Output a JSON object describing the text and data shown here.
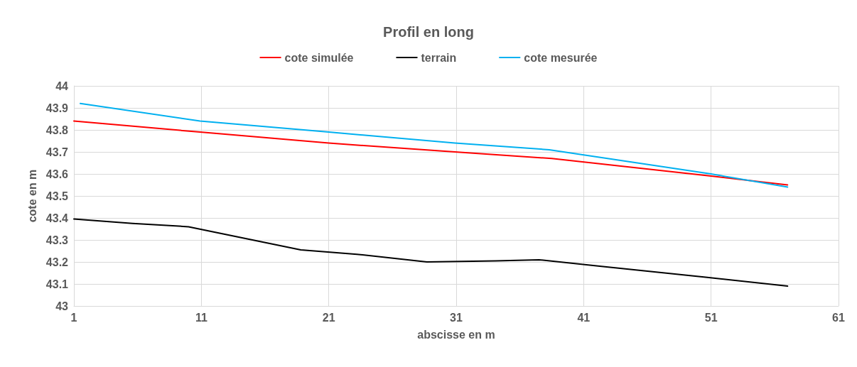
{
  "chart_data": {
    "type": "line",
    "title": "Profil en long",
    "xlabel": "abscisse en m",
    "ylabel": "cote en m",
    "xlim": [
      1,
      61
    ],
    "xticks": [
      1,
      11,
      21,
      31,
      41,
      51,
      61
    ],
    "ylim": [
      43,
      44
    ],
    "yticks": [
      43,
      43.1,
      43.2,
      43.3,
      43.4,
      43.5,
      43.6,
      43.7,
      43.8,
      43.9,
      44
    ],
    "grid": true,
    "legend": "top",
    "marker": "none",
    "series": [
      {
        "name": "cote simulée",
        "color": "#ff0000",
        "x": [
          1,
          10.9,
          21,
          30.9,
          38.5,
          51,
          57
        ],
        "values": [
          43.84,
          43.79,
          43.74,
          43.7,
          43.67,
          43.59,
          43.55
        ]
      },
      {
        "name": "terrain",
        "color": "#000000",
        "x": [
          1,
          5.6,
          10,
          18.8,
          23.2,
          28.7,
          34.1,
          37.5,
          42.4,
          50.7,
          57
        ],
        "values": [
          43.395,
          43.375,
          43.36,
          43.255,
          43.235,
          43.2,
          43.205,
          43.21,
          43.18,
          43.13,
          43.09
        ]
      },
      {
        "name": "cote mesurée",
        "color": "#00b0f0",
        "x": [
          1.5,
          10.9,
          21,
          30.9,
          38.3,
          51,
          57
        ],
        "values": [
          43.92,
          43.84,
          43.79,
          43.74,
          43.71,
          43.6,
          43.54
        ]
      }
    ]
  }
}
